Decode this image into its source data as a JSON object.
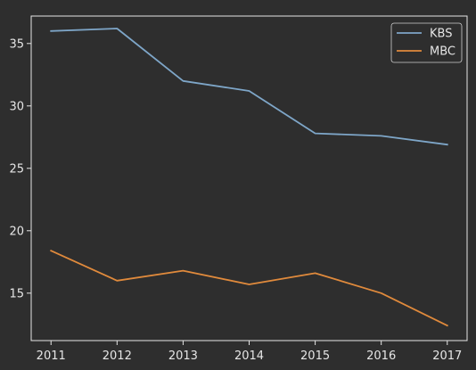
{
  "chart_data": {
    "type": "line",
    "title": "",
    "xlabel": "",
    "ylabel": "",
    "x": [
      2011,
      2012,
      2013,
      2014,
      2015,
      2016,
      2017
    ],
    "x_ticks": [
      "2011",
      "2012",
      "2013",
      "2014",
      "2015",
      "2016",
      "2017"
    ],
    "y_ticks": [
      "15",
      "20",
      "25",
      "30",
      "35"
    ],
    "xlim": [
      2010.7,
      2017.3
    ],
    "ylim": [
      11.2,
      37.2
    ],
    "grid": false,
    "legend_position": "top-right",
    "series": [
      {
        "name": "KBS",
        "color": "#7ea6c8",
        "values": [
          36.0,
          36.2,
          32.0,
          31.2,
          27.8,
          27.6,
          26.9
        ]
      },
      {
        "name": "MBC",
        "color": "#e08a3c",
        "values": [
          18.4,
          16.0,
          16.8,
          15.7,
          16.6,
          15.0,
          12.4
        ]
      }
    ]
  }
}
